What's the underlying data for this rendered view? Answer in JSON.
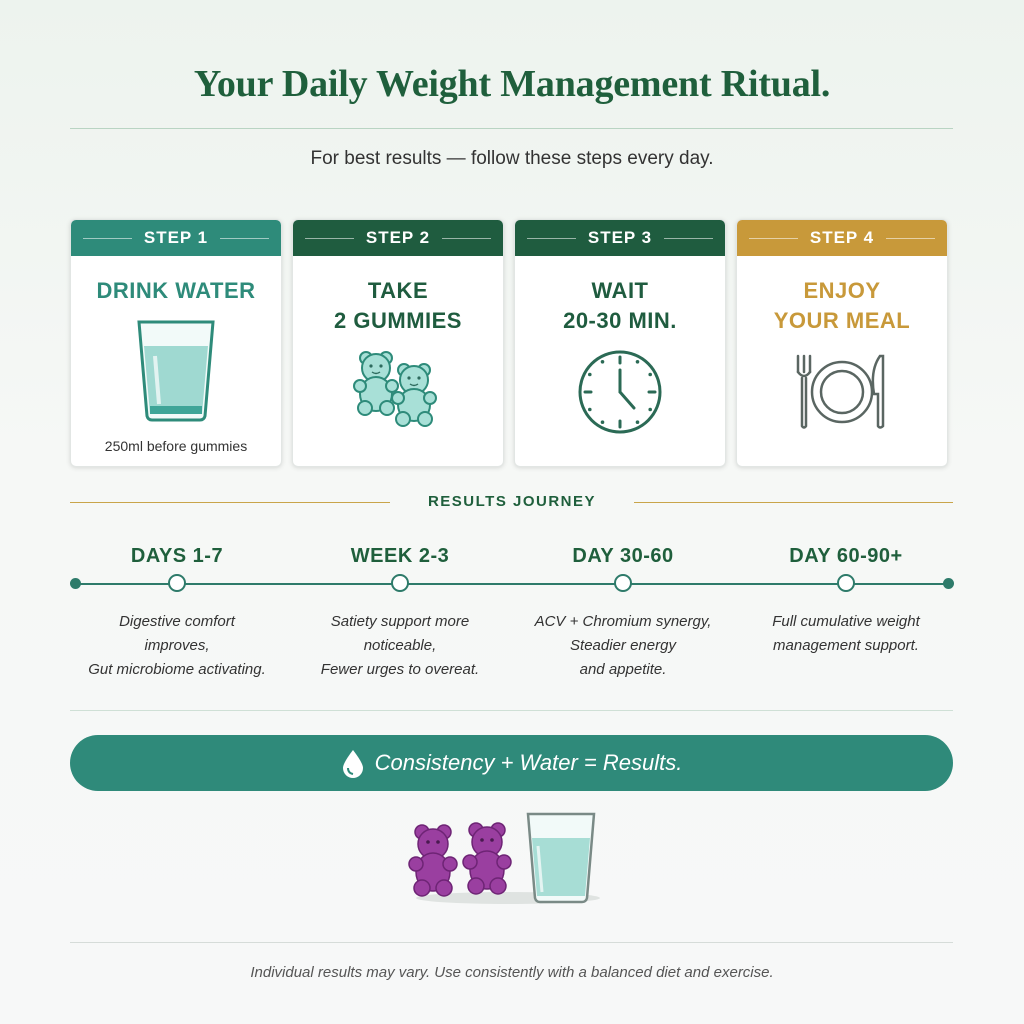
{
  "header": {
    "title": "Your Daily Weight Management Ritual.",
    "subtitle": "For best results — follow these steps every day."
  },
  "steps": [
    {
      "label": "STEP 1",
      "title_lines": [
        "DRINK WATER",
        ""
      ],
      "note": "250ml before gummies",
      "color": "#2e8b7a",
      "text_color": "#2e8b7a",
      "icon": "water-glass-icon"
    },
    {
      "label": "STEP 2",
      "title_lines": [
        "TAKE",
        "2 GUMMIES"
      ],
      "note": "",
      "color": "#1f5c3f",
      "text_color": "#1f5c3f",
      "icon": "gummy-bears-icon"
    },
    {
      "label": "STEP 3",
      "title_lines": [
        "WAIT",
        "20-30 MIN."
      ],
      "note": "",
      "color": "#1f5c3f",
      "text_color": "#1f5c3f",
      "icon": "clock-icon"
    },
    {
      "label": "STEP 4",
      "title_lines": [
        "ENJOY",
        "YOUR MEAL"
      ],
      "note": "",
      "color": "#c8993a",
      "text_color": "#c8993a",
      "icon": "plate-cutlery-icon"
    }
  ],
  "journey": {
    "label": "RESULTS JOURNEY",
    "stages": [
      {
        "title": "DAYS 1-7",
        "lines": [
          "Digestive comfort",
          "improves,",
          "Gut microbiome activating."
        ]
      },
      {
        "title": "WEEK 2-3",
        "lines": [
          "Satiety support more",
          "noticeable,",
          "Fewer urges to overeat."
        ]
      },
      {
        "title": "DAY 30-60",
        "lines": [
          "ACV + Chromium synergy,",
          "Steadier energy",
          "and appetite."
        ]
      },
      {
        "title": "DAY 60-90+",
        "lines": [
          "Full cumulative weight",
          "management support.",
          ""
        ]
      }
    ]
  },
  "banner": {
    "text": "Consistency + Water = Results.",
    "icon": "water-drop-icon"
  },
  "disclaimer": "Individual results may vary. Use consistently with a balanced diet and exercise.",
  "colors": {
    "primary_green": "#1f5f3c",
    "teal": "#2f8a7a",
    "gold": "#c8993a",
    "gummy_purple": "#9a3fa0"
  }
}
